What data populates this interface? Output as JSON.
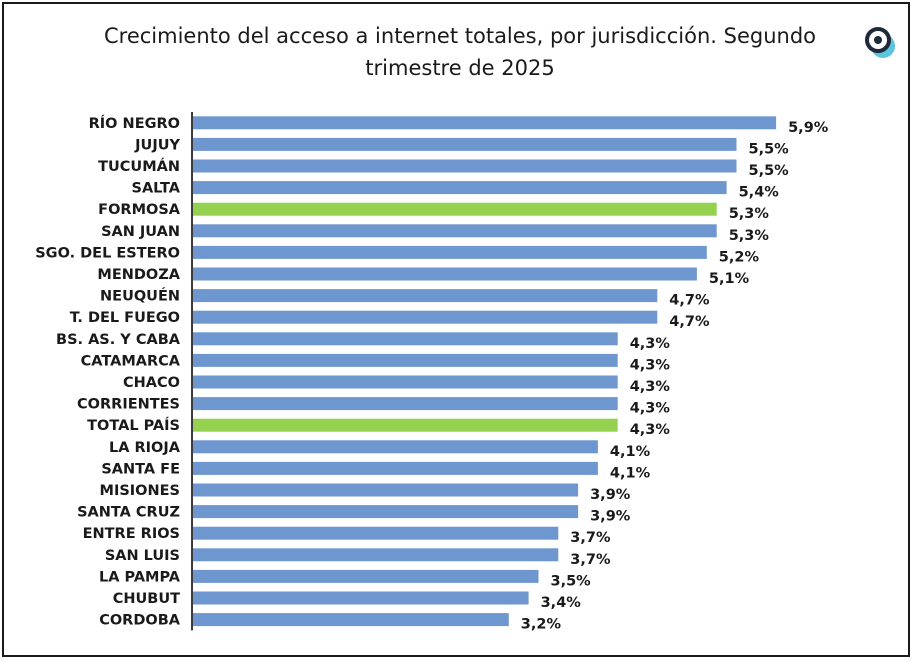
{
  "chart_data": {
    "type": "bar",
    "orientation": "horizontal",
    "title": "Crecimiento del acceso a internet totales, por jurisdicción. Segundo trimestre de 2025",
    "title_line1": "Crecimiento del acceso a internet totales, por jurisdicción. Segundo",
    "title_line2": "trimestre de 2025",
    "categories": [
      "RÍO NEGRO",
      "JUJUY",
      "TUCUMÁN",
      "SALTA",
      "FORMOSA",
      "SAN JUAN",
      "SGO. DEL ESTERO",
      "MENDOZA",
      "NEUQUÉN",
      "T. DEL FUEGO",
      "BS. AS. Y CABA",
      "CATAMARCA",
      "CHACO",
      "CORRIENTES",
      "TOTAL PAÍS",
      "LA RIOJA",
      "SANTA FE",
      "MISIONES",
      "SANTA CRUZ",
      "ENTRE RIOS",
      "SAN LUIS",
      "LA PAMPA",
      "CHUBUT",
      "CORDOBA"
    ],
    "values": [
      5.9,
      5.5,
      5.5,
      5.4,
      5.3,
      5.3,
      5.2,
      5.1,
      4.7,
      4.7,
      4.3,
      4.3,
      4.3,
      4.3,
      4.3,
      4.1,
      4.1,
      3.9,
      3.9,
      3.7,
      3.7,
      3.5,
      3.4,
      3.2
    ],
    "value_labels": [
      "5,9%",
      "5,5%",
      "5,5%",
      "5,4%",
      "5,3%",
      "5,3%",
      "5,2%",
      "5,1%",
      "4,7%",
      "4,7%",
      "4,3%",
      "4,3%",
      "4,3%",
      "4,3%",
      "4,3%",
      "4,1%",
      "4,1%",
      "3,9%",
      "3,9%",
      "3,7%",
      "3,7%",
      "3,5%",
      "3,4%",
      "3,2%"
    ],
    "highlighted": [
      "FORMOSA",
      "TOTAL PAÍS"
    ],
    "unit": "%",
    "xlim": [
      0,
      6.5
    ],
    "grid": false,
    "legend": "none",
    "colors": {
      "bar": "#6f97cf",
      "highlight": "#93d14f",
      "axis": "#3a3a3a",
      "text": "#1a1a1a"
    }
  },
  "logo": {
    "name": "brand-logo-icon",
    "colors": {
      "ring": "#1e2a3a",
      "dot": "#5cc4dd"
    }
  }
}
